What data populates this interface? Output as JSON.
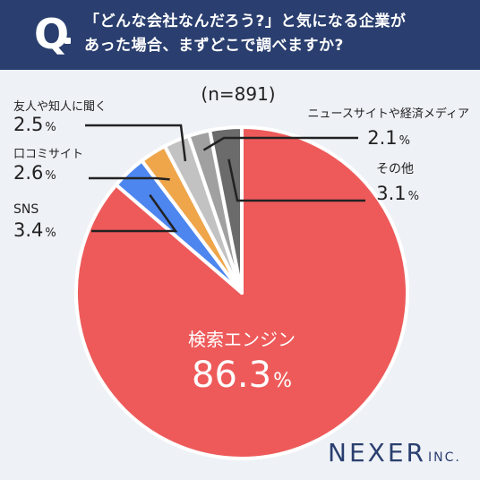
{
  "header": {
    "q_mark": "Q",
    "question_line1": "「どんな会社なんだろう?」と気になる企業が",
    "question_line2": "あった場合、まずどこで調べますか?"
  },
  "brand": {
    "name": "NEXER",
    "suffix": "INC."
  },
  "colors": {
    "header_bg": "#2a3f6f",
    "background": "#eef1f6",
    "search": "#ee5a5a",
    "sns": "#4d86ef",
    "word_of_mouth": "#efa54a",
    "acquaintance": "#c2c2c2",
    "news_media": "#a0a0a0",
    "other": "#6b6b6b"
  },
  "chart_data": {
    "type": "pie",
    "sample_note": "(n=891)",
    "unit": "%",
    "start": "12 o'clock",
    "direction": "clockwise",
    "slices": [
      {
        "label": "検索エンジン",
        "value": 86.3,
        "color": "#ee5a5a"
      },
      {
        "label": "SNS",
        "value": 3.4,
        "color": "#4d86ef"
      },
      {
        "label": "口コミサイト",
        "value": 2.6,
        "color": "#efa54a"
      },
      {
        "label": "友人や知人に聞く",
        "value": 2.5,
        "color": "#c2c2c2"
      },
      {
        "label": "ニュースサイトや経済メディア",
        "value": 2.1,
        "color": "#a0a0a0"
      },
      {
        "label": "その他",
        "value": 3.1,
        "color": "#6b6b6b"
      }
    ]
  }
}
